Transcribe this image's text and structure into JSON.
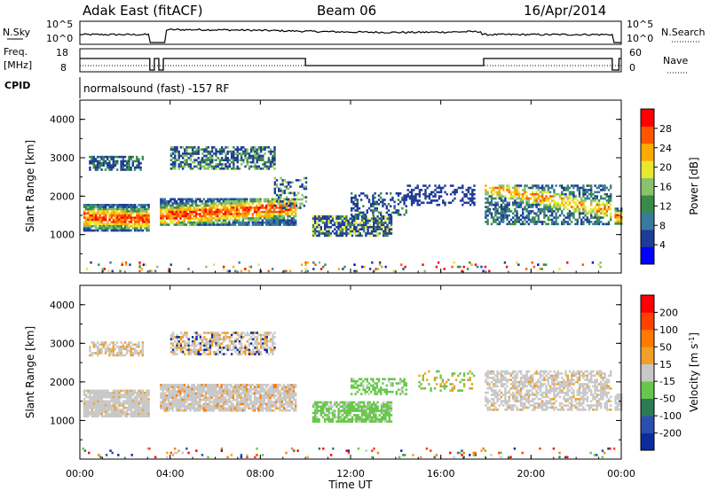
{
  "header": {
    "radar": "Adak East (fitACF)",
    "beam": "Beam 06",
    "date": "16/Apr/2014"
  },
  "noise_panel": {
    "left_label": "N.Sky",
    "left_ticks": [
      "10^5",
      "10^0"
    ],
    "right_label": "N.Search",
    "right_ticks": [
      "10^5",
      "10^0"
    ]
  },
  "freq_panel": {
    "left_label_top": "Freq.",
    "left_label_bottom": "[MHz]",
    "left_ticks": [
      "18",
      "8"
    ],
    "right_label": "Nave",
    "right_ticks": [
      "60",
      "0"
    ]
  },
  "cpid_panel": {
    "label": "CPID",
    "program": "normalsound (fast) -157 RF"
  },
  "range_axis": {
    "label": "Slant Range [km]",
    "ticks": [
      "4000",
      "3000",
      "2000",
      "1000"
    ]
  },
  "time_axis": {
    "label": "Time UT",
    "ticks": [
      "00:00",
      "04:00",
      "08:00",
      "12:00",
      "16:00",
      "20:00",
      "00:00"
    ]
  },
  "power_colorbar": {
    "label": "Power [dB]",
    "ticks": [
      "28",
      "24",
      "20",
      "16",
      "12",
      "8",
      "4"
    ],
    "colors": [
      "#0000ff",
      "#1e3c96",
      "#3a7a9c",
      "#3a8a4a",
      "#88c26a",
      "#e8e82e",
      "#ffaa00",
      "#ff5500",
      "#ff0000"
    ]
  },
  "velocity_colorbar": {
    "label": "Velocity [m s",
    "label_sup": "-1",
    "label_end": "]",
    "ticks": [
      "200",
      "100",
      "50",
      "15",
      "-15",
      "-50",
      "-100",
      "-200"
    ],
    "colors": [
      "#0a2c9c",
      "#2b4fb0",
      "#2e7a52",
      "#66c84a",
      "#c8c8c8",
      "#f0a028",
      "#ff7a00",
      "#ff4000",
      "#ff0000"
    ]
  },
  "chart_data": {
    "type": "heatmap",
    "x_range_hours": [
      0,
      24
    ],
    "y_range_km": [
      0,
      4500
    ],
    "panels": [
      {
        "name": "Power",
        "scatter_bands": [
          {
            "x": [
              0.2,
              3.0
            ],
            "y": [
              1150,
              1800
            ],
            "level": "20"
          },
          {
            "x": [
              0.4,
              2.8
            ],
            "y": [
              2700,
              3050
            ],
            "level": "8"
          },
          {
            "x": [
              3.5,
              9.5
            ],
            "y": [
              1300,
              1900
            ],
            "level": "16"
          },
          {
            "x": [
              4.0,
              8.5
            ],
            "y": [
              2750,
              3300
            ],
            "level": "8"
          },
          {
            "x": [
              10.3,
              13.8
            ],
            "y": [
              1000,
              1500
            ],
            "level": "8"
          },
          {
            "x": [
              17.9,
              23.5
            ],
            "y": [
              1300,
              2100
            ],
            "level": "16"
          }
        ]
      },
      {
        "name": "Velocity",
        "scatter_bands": [
          {
            "x": [
              0.2,
              3.0
            ],
            "y": [
              1150,
              1800
            ],
            "level": "-15"
          },
          {
            "x": [
              3.5,
              9.5
            ],
            "y": [
              1300,
              1900
            ],
            "level": "-15"
          },
          {
            "x": [
              10.3,
              13.8
            ],
            "y": [
              1000,
              1500
            ],
            "level": "50"
          },
          {
            "x": [
              12.0,
              14.5
            ],
            "y": [
              1700,
              2100
            ],
            "level": "50"
          },
          {
            "x": [
              17.9,
              23.5
            ],
            "y": [
              1300,
              2100
            ],
            "level": "-15"
          }
        ]
      }
    ]
  }
}
